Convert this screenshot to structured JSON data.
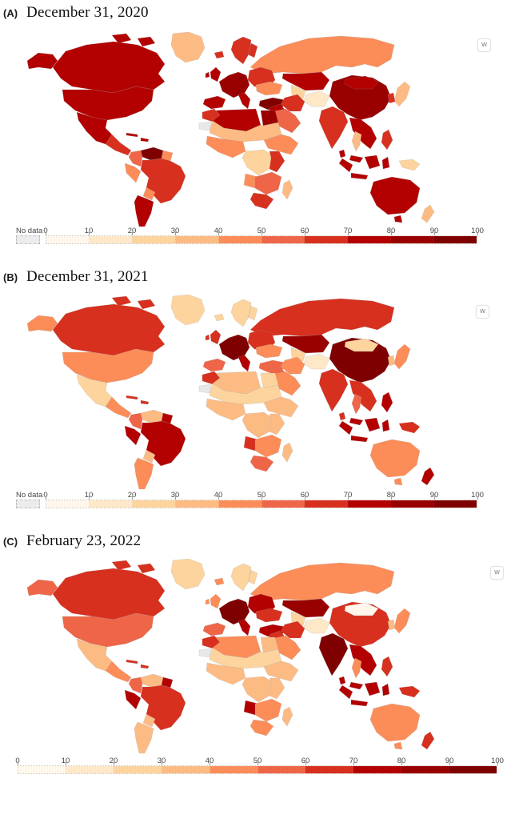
{
  "figure": {
    "panels": [
      {
        "label": "(A)",
        "title": "December 31, 2020",
        "show_no_data": true
      },
      {
        "label": "(B)",
        "title": "December 31, 2021",
        "show_no_data": true
      },
      {
        "label": "(C)",
        "title": "February 23, 2022",
        "show_no_data": false
      }
    ],
    "watermark_button": "W"
  },
  "legend": {
    "no_data_label": "No data",
    "ticks": [
      0,
      10,
      20,
      30,
      40,
      50,
      60,
      70,
      80,
      90,
      100
    ],
    "colors": [
      "#fff7ec",
      "#fee8c8",
      "#fdd49e",
      "#fdbb84",
      "#fc8d59",
      "#ef6548",
      "#d7301f",
      "#b30000",
      "#990000",
      "#7f0000"
    ],
    "no_data_color": "#ececec",
    "scale_min": 0,
    "scale_max": 100
  },
  "maps": [
    {
      "panel": "A",
      "date": "December 31, 2020",
      "regions": {
        "russia": "#fc8d59",
        "canada": "#b30000",
        "canadaIslands": "#b30000",
        "alaska": "#b30000",
        "usa": "#b30000",
        "greenland": "#fdbb84",
        "mexico": "#b30000",
        "centralAmerica": "#d7301f",
        "caribbean": "#b30000",
        "venezuela": "#7f0000",
        "colombia": "#ef6548",
        "guyanas": "#fc8d59",
        "peru": "#fc8d59",
        "brazil": "#d7301f",
        "bolivia": "#fc8d59",
        "argentinaChile": "#b30000",
        "iceland": "#d7301f",
        "uk": "#b30000",
        "scandinavia": "#d7301f",
        "westernEurope": "#990000",
        "spain": "#b30000",
        "italy": "#b30000",
        "easternEurope": "#d7301f",
        "ukraine": "#fc8d59",
        "turkey": "#7f0000",
        "kazakhstan": "#b30000",
        "turkmenistan": "#fdd49e",
        "afghanistan": "#fee8c8",
        "iran": "#d7301f",
        "levant": "#b30000",
        "middleEast": "#ef6548",
        "india": "#d7301f",
        "china": "#990000",
        "mongolia": "#b30000",
        "seAsia": "#b30000",
        "thailand": "#fdbb84",
        "malaysia": "#b30000",
        "indonesia": "#b30000",
        "philippines": "#d7301f",
        "japan": "#fdbb84",
        "korea": "#d7301f",
        "png": "#fdd49e",
        "australia": "#b30000",
        "nz": "#fdbb84",
        "srilanka": "#b30000",
        "morocco": "#d7301f",
        "algeriaLibya": "#b30000",
        "egypt": "#990000",
        "westernSahara": "#e8e8e8",
        "sahel": "#fdbb84",
        "westAfrica": "#fc8d59",
        "hornAfrica": "#fc8d59",
        "centralAfrica": "#fdd49e",
        "eastAfrica": "#d7301f",
        "angola": "#fc8d59",
        "southernAfrica": "#ef6548",
        "southAfrica": "#d7301f",
        "madagascar": "#fdbb84"
      }
    },
    {
      "panel": "B",
      "date": "December 31, 2021",
      "regions": {
        "russia": "#d7301f",
        "canada": "#d7301f",
        "canadaIslands": "#d7301f",
        "alaska": "#fc8d59",
        "usa": "#fc8d59",
        "greenland": "#fdd49e",
        "mexico": "#fdd49e",
        "centralAmerica": "#fc8d59",
        "caribbean": "#d7301f",
        "venezuela": "#fdbb84",
        "colombia": "#ef6548",
        "guyanas": "#b30000",
        "peru": "#b30000",
        "brazil": "#b30000",
        "bolivia": "#fdbb84",
        "argentinaChile": "#fc8d59",
        "iceland": "#fdd49e",
        "uk": "#d7301f",
        "scandinavia": "#fdd49e",
        "westernEurope": "#7f0000",
        "spain": "#ef6548",
        "italy": "#b30000",
        "easternEurope": "#d7301f",
        "ukraine": "#fc8d59",
        "turkey": "#ef6548",
        "kazakhstan": "#990000",
        "turkmenistan": "#fdd49e",
        "afghanistan": "#fee8c8",
        "iran": "#fc8d59",
        "levant": "#ef6548",
        "middleEast": "#fc8d59",
        "india": "#d7301f",
        "china": "#7f0000",
        "mongolia": "#fdd49e",
        "seAsia": "#d7301f",
        "thailand": "#ef6548",
        "malaysia": "#b30000",
        "indonesia": "#b30000",
        "philippines": "#b30000",
        "japan": "#fc8d59",
        "korea": "#fdbb84",
        "png": "#d7301f",
        "australia": "#fc8d59",
        "nz": "#b30000",
        "srilanka": "#d7301f",
        "morocco": "#d7301f",
        "algeriaLibya": "#fdbb84",
        "egypt": "#fdd49e",
        "westernSahara": "#e8e8e8",
        "sahel": "#fdd49e",
        "westAfrica": "#fdbb84",
        "hornAfrica": "#fdbb84",
        "centralAfrica": "#fdbb84",
        "eastAfrica": "#fdbb84",
        "angola": "#d7301f",
        "southernAfrica": "#fc8d59",
        "southAfrica": "#ef6548",
        "madagascar": "#fdbb84"
      }
    },
    {
      "panel": "C",
      "date": "February 23, 2022",
      "regions": {
        "russia": "#fc8d59",
        "canada": "#d7301f",
        "canadaIslands": "#d7301f",
        "alaska": "#ef6548",
        "usa": "#ef6548",
        "greenland": "#fdd49e",
        "mexico": "#fdbb84",
        "centralAmerica": "#fc8d59",
        "caribbean": "#d7301f",
        "venezuela": "#fdbb84",
        "colombia": "#ef6548",
        "guyanas": "#b30000",
        "peru": "#b30000",
        "brazil": "#d7301f",
        "bolivia": "#fdbb84",
        "argentinaChile": "#fdbb84",
        "iceland": "#fc8d59",
        "uk": "#fc8d59",
        "scandinavia": "#fdd49e",
        "westernEurope": "#7f0000",
        "spain": "#ef6548",
        "italy": "#b30000",
        "easternEurope": "#b30000",
        "ukraine": "#d7301f",
        "turkey": "#b30000",
        "kazakhstan": "#990000",
        "turkmenistan": "#fdd49e",
        "afghanistan": "#fee8c8",
        "iran": "#d7301f",
        "levant": "#d7301f",
        "middleEast": "#fc8d59",
        "india": "#7f0000",
        "china": "#d7301f",
        "mongolia": "#fff7ec",
        "seAsia": "#b30000",
        "thailand": "#fc8d59",
        "malaysia": "#b30000",
        "indonesia": "#b30000",
        "philippines": "#d7301f",
        "japan": "#fc8d59",
        "korea": "#fdbb84",
        "png": "#d7301f",
        "australia": "#fc8d59",
        "nz": "#d7301f",
        "srilanka": "#b30000",
        "morocco": "#d7301f",
        "algeriaLibya": "#fc8d59",
        "egypt": "#fdbb84",
        "westernSahara": "#e8e8e8",
        "sahel": "#fdd49e",
        "westAfrica": "#fdbb84",
        "hornAfrica": "#fdbb84",
        "centralAfrica": "#fdbb84",
        "eastAfrica": "#fdbb84",
        "angola": "#b30000",
        "southernAfrica": "#fc8d59",
        "southAfrica": "#fc8d59",
        "madagascar": "#fdbb84"
      }
    }
  ]
}
